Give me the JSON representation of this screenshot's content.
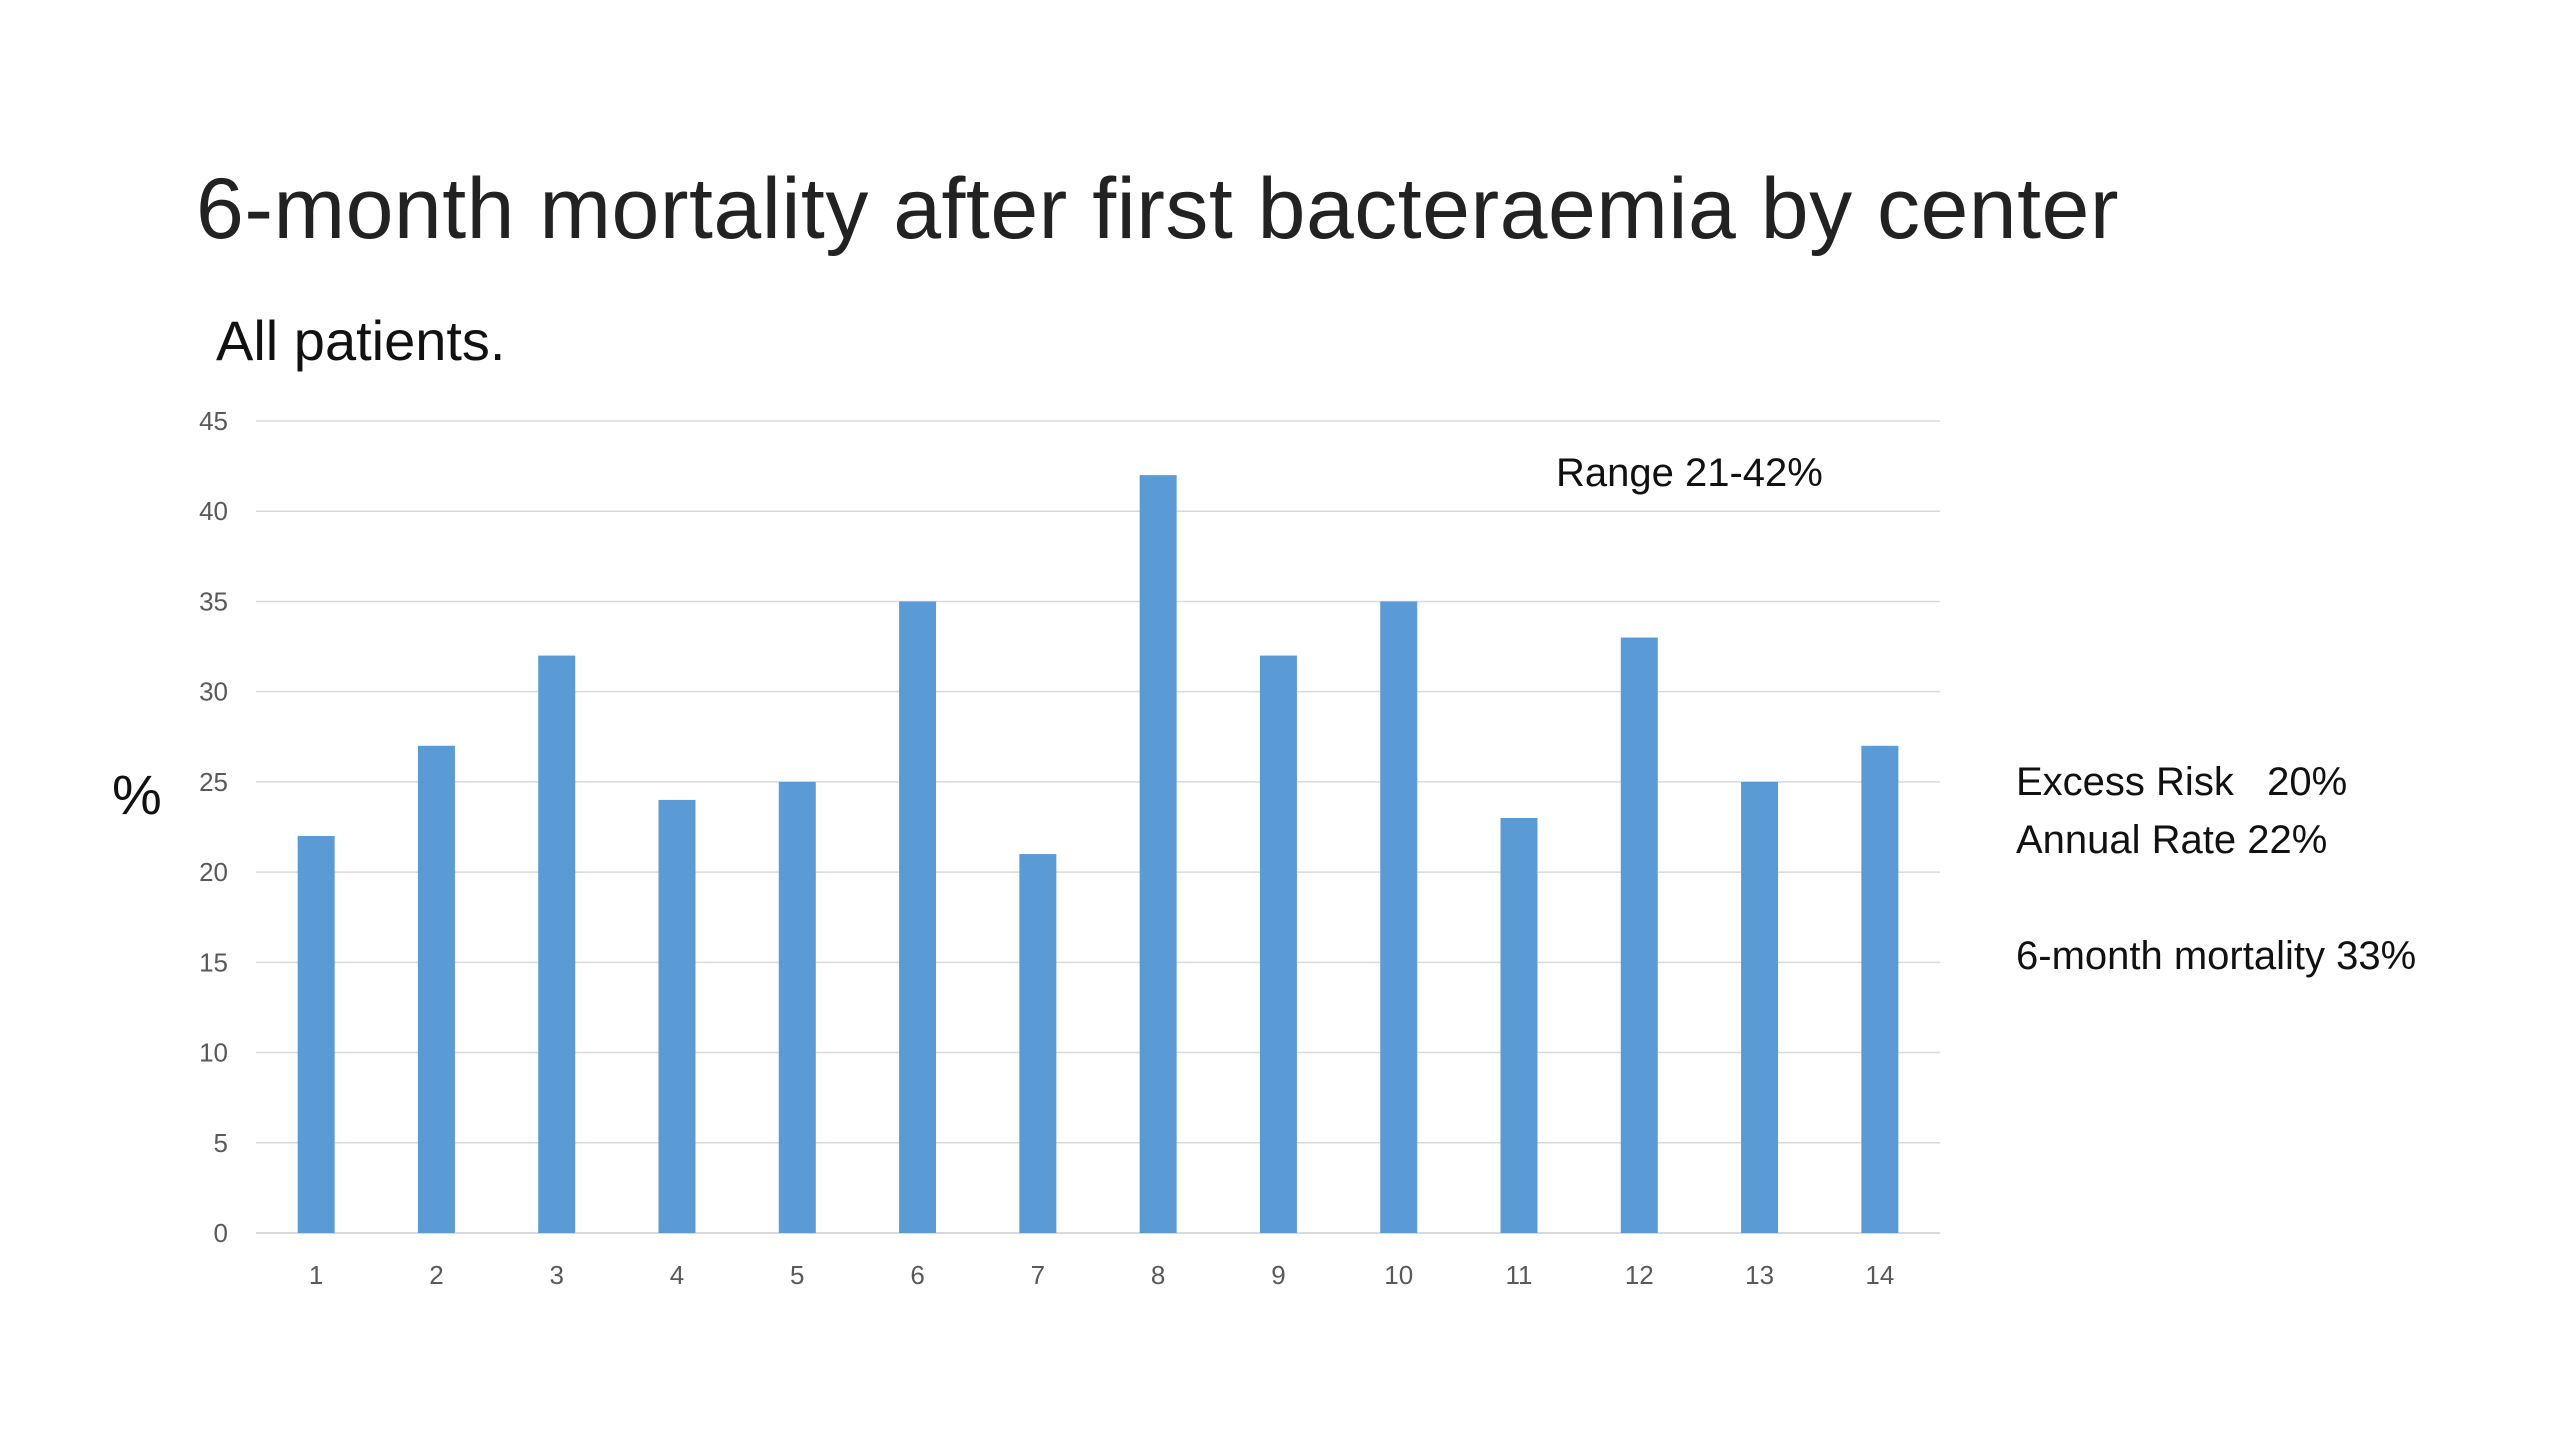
{
  "slide": {
    "title": "6-month mortality after first bacteraemia by center",
    "subtitle": "All patients.",
    "y_axis_symbol": "%",
    "range_note": "Range 21-42%",
    "side_notes": {
      "excess_risk": "Excess Risk   20%",
      "annual_rate": "Annual Rate 22%",
      "six_month_mortality": "6-month mortality 33%"
    }
  },
  "chart_data": {
    "type": "bar",
    "title": "6-month mortality after first bacteraemia by center",
    "subtitle": "All patients.",
    "xlabel": "",
    "ylabel": "%",
    "categories": [
      "1",
      "2",
      "3",
      "4",
      "5",
      "6",
      "7",
      "8",
      "9",
      "10",
      "11",
      "12",
      "13",
      "14"
    ],
    "values": [
      22,
      27,
      32,
      24,
      25,
      35,
      21,
      42,
      32,
      35,
      23,
      33,
      25,
      27
    ],
    "ylim": [
      0,
      45
    ],
    "yticks": [
      0,
      5,
      10,
      15,
      20,
      25,
      30,
      35,
      40,
      45
    ],
    "grid": true,
    "legend": "none",
    "bar_color": "#5B9BD5",
    "grid_color": "#D9D9D9",
    "annotations": [
      "Range 21-42%"
    ]
  }
}
